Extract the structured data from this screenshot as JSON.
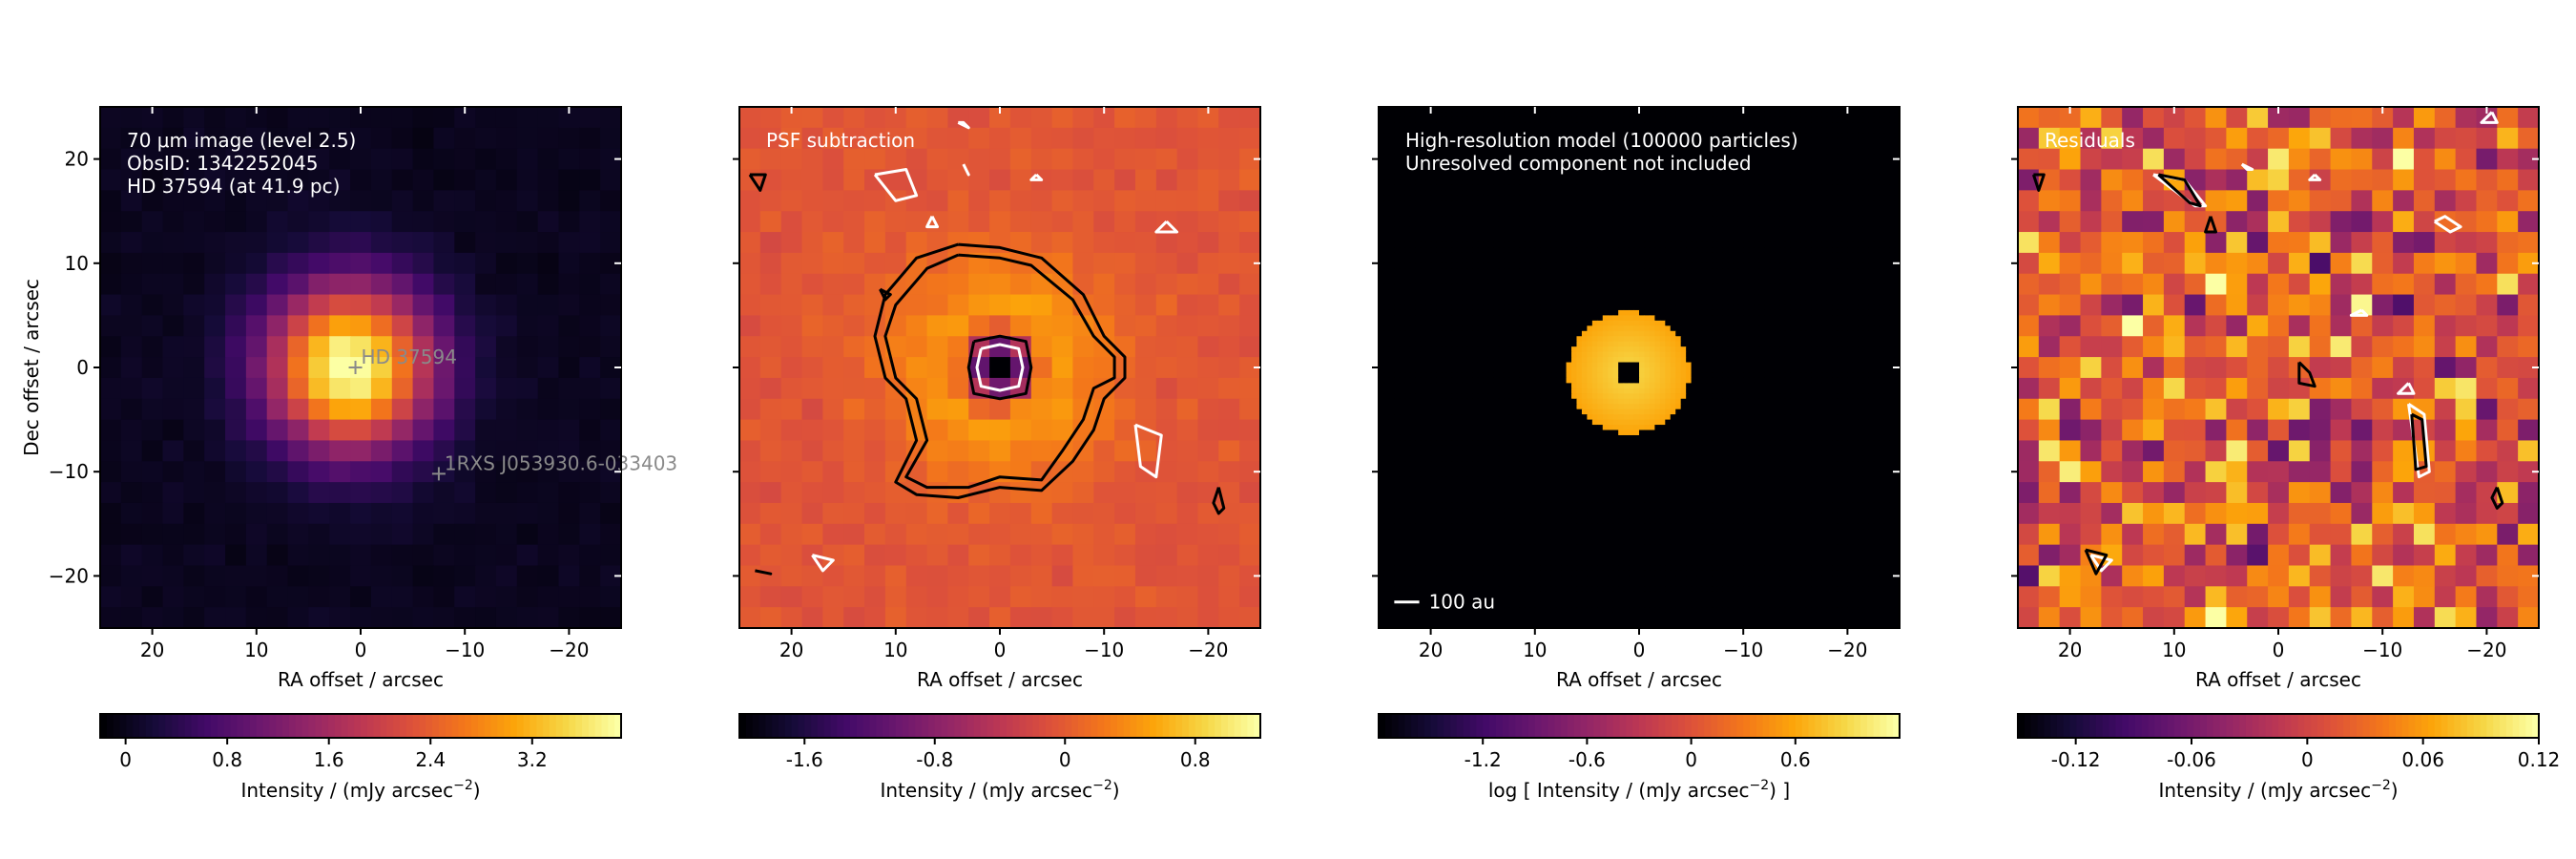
{
  "figure": {
    "background": "#ffffff",
    "colormap": "inferno"
  },
  "chart_data": [
    {
      "type": "heatmap",
      "annotation_lines": [
        "70 μm image (level 2.5)",
        "ObsID: 1342252045",
        "HD 37594 (at 41.9 pc)"
      ],
      "xlabel": "RA offset / arcsec",
      "ylabel": "Dec offset / arcsec",
      "xlim": [
        25,
        -25
      ],
      "ylim": [
        -25,
        25
      ],
      "x_ticks": [
        20,
        10,
        0,
        -10,
        -20
      ],
      "x_tick_labels": [
        "20",
        "10",
        "0",
        "−10",
        "−20"
      ],
      "y_ticks": [
        20,
        10,
        0,
        -10,
        -20
      ],
      "y_tick_labels": [
        "20",
        "10",
        "0",
        "−10",
        "−20"
      ],
      "pixel_arcsec": 2,
      "image_model": {
        "kind": "gaussian_source",
        "center": [
          1,
          0
        ],
        "fwhm_arcsec": 13,
        "peak": 4.0,
        "noise": 0.05
      },
      "markers": [
        {
          "label": "HD 37594",
          "x": 0.5,
          "y": 0
        },
        {
          "label": "1RXS J053930.6-033403",
          "x": -7.5,
          "y": -10.2
        }
      ],
      "colorbar": {
        "label": "Intensity / (mJy arcsec",
        "label_sup": "−2",
        "label_end": ")",
        "range": [
          -0.2,
          3.9
        ],
        "ticks": [
          0,
          0.8,
          1.6,
          2.4,
          3.2
        ],
        "tick_labels": [
          "0",
          "0.8",
          "1.6",
          "2.4",
          "3.2"
        ]
      }
    },
    {
      "type": "heatmap",
      "annotation_lines": [
        "PSF subtraction"
      ],
      "xlabel": "RA offset / arcsec",
      "ylabel": "",
      "xlim": [
        25,
        -25
      ],
      "ylim": [
        -25,
        25
      ],
      "x_ticks": [
        20,
        10,
        0,
        -10,
        -20
      ],
      "x_tick_labels": [
        "20",
        "10",
        "0",
        "−10",
        "−20"
      ],
      "y_ticks": [
        20,
        10,
        0,
        -10,
        -20
      ],
      "pixel_arcsec": 2,
      "image_model": {
        "kind": "ring_residual",
        "outer_amplitude": 0.8,
        "outer_sigma": 7,
        "hole_depth": 2.7,
        "hole_sigma": 2.2,
        "noise": 0.08,
        "offset": -0.05
      },
      "contours": [
        {
          "color": "#000000",
          "x": [
            4,
            8,
            11,
            12,
            11,
            9,
            8,
            10,
            8,
            4,
            0,
            -4,
            -7,
            -9,
            -10,
            -12,
            -12,
            -10,
            -8,
            -4,
            0,
            4
          ],
          "y": [
            11.8,
            10.5,
            7,
            3,
            -1,
            -3,
            -7,
            -11,
            -12.2,
            -12.5,
            -11.5,
            -11.8,
            -9,
            -6,
            -3,
            -1,
            1,
            3,
            7,
            10.5,
            11.5,
            11.8
          ]
        },
        {
          "color": "#000000",
          "x": [
            4,
            7,
            10,
            11,
            10,
            8,
            7,
            9,
            7,
            3,
            0,
            -4,
            -6,
            -8,
            -9,
            -11,
            -11,
            -9,
            -7,
            -3,
            0,
            4
          ],
          "y": [
            10.8,
            9.5,
            6,
            3,
            -1,
            -3,
            -7,
            -10.5,
            -11.5,
            -11.5,
            -10.5,
            -10.8,
            -8,
            -5,
            -2,
            -1,
            1,
            3,
            6.5,
            9.8,
            10.5,
            10.8
          ]
        },
        {
          "color": "#000000",
          "x": [
            2.5,
            0,
            -2.5,
            -3,
            -2.5,
            0,
            2.5,
            3,
            2.5
          ],
          "y": [
            2.5,
            3,
            2.5,
            0,
            -2.5,
            -3,
            -2.5,
            0,
            2.5
          ]
        },
        {
          "color": "#ffffff",
          "x": [
            1.8,
            0,
            -1.8,
            -2.2,
            -1.8,
            0,
            1.8,
            2.2,
            1.8
          ],
          "y": [
            1.8,
            2.2,
            1.8,
            0,
            -1.8,
            -2.2,
            -1.8,
            0,
            1.8
          ]
        },
        {
          "color": "#000000",
          "x": [
            24,
            23,
            22.5,
            24
          ],
          "y": [
            18.5,
            17,
            18.5,
            18.5
          ]
        },
        {
          "color": "#000000",
          "x": [
            11.5,
            11,
            10.5,
            11.5
          ],
          "y": [
            7.5,
            6.5,
            7,
            7.5
          ]
        },
        {
          "color": "#000000",
          "x": [
            -21,
            -21.5,
            -21,
            -20.5,
            -21
          ],
          "y": [
            -11.5,
            -13.5,
            -14,
            -13,
            -11.5
          ]
        },
        {
          "color": "#ffffff",
          "x": [
            12,
            9,
            8,
            10,
            12
          ],
          "y": [
            18.5,
            19,
            16.5,
            16,
            18.5
          ]
        },
        {
          "color": "#ffffff",
          "x": [
            -16,
            -17,
            -15,
            -16
          ],
          "y": [
            14,
            13,
            13,
            14
          ]
        },
        {
          "color": "#ffffff",
          "x": [
            -13,
            -15.5,
            -15,
            -13.5,
            -13
          ],
          "y": [
            -5.5,
            -6.5,
            -10.5,
            -9.5,
            -5.5
          ]
        },
        {
          "color": "#ffffff",
          "x": [
            18,
            16,
            17,
            18
          ],
          "y": [
            -18,
            -18.5,
            -19.5,
            -18
          ]
        },
        {
          "color": "#ffffff",
          "x": [
            4,
            3.5,
            3,
            4
          ],
          "y": [
            23.5,
            23.5,
            23,
            23.5
          ]
        },
        {
          "color": "#ffffff",
          "x": [
            3.5,
            3,
            3.5
          ],
          "y": [
            19.5,
            18.5,
            19.5
          ]
        },
        {
          "color": "#ffffff",
          "x": [
            -3.5,
            -3,
            -4,
            -3.5
          ],
          "y": [
            18.5,
            18,
            18,
            18.5
          ]
        },
        {
          "color": "#ffffff",
          "x": [
            6.5,
            6,
            7,
            6.5
          ],
          "y": [
            14.5,
            13.5,
            13.5,
            14.5
          ]
        },
        {
          "color": "#000000",
          "x": [
            23.5,
            22,
            23.5
          ],
          "y": [
            -19.5,
            -19.8,
            -19.5
          ]
        }
      ],
      "colorbar": {
        "label": "Intensity / (mJy arcsec",
        "label_sup": "−2",
        "label_end": ")",
        "range": [
          -2.0,
          1.2
        ],
        "ticks": [
          -1.6,
          -0.8,
          0,
          0.8
        ],
        "tick_labels": [
          "-1.6",
          "-0.8",
          "0",
          "0.8"
        ]
      }
    },
    {
      "type": "heatmap",
      "annotation_lines": [
        "High-resolution model (100000 particles)",
        "Unresolved component not included"
      ],
      "xlabel": "RA offset / arcsec",
      "ylabel": "",
      "xlim": [
        25,
        -25
      ],
      "ylim": [
        -25,
        25
      ],
      "x_ticks": [
        20,
        10,
        0,
        -10,
        -20
      ],
      "x_tick_labels": [
        "20",
        "10",
        "0",
        "−10",
        "−20"
      ],
      "y_ticks": [
        20,
        10,
        0,
        -10,
        -20
      ],
      "pixel_arcsec": 0.5,
      "image_model": {
        "kind": "disk_model",
        "inner_radius": 1.2,
        "outer_radius": 5.8,
        "peak": 1.0,
        "background": -2.0
      },
      "scale_bar": {
        "label": "100 au",
        "length_arcsec": 2.4
      },
      "colorbar": {
        "label": "log [ Intensity / (mJy arcsec",
        "label_sup": "−2",
        "label_end": ") ]",
        "range": [
          -1.8,
          1.2
        ],
        "ticks": [
          -1.2,
          -0.6,
          0,
          0.6
        ],
        "tick_labels": [
          "-1.2",
          "-0.6",
          "0",
          "0.6"
        ]
      }
    },
    {
      "type": "heatmap",
      "annotation_lines": [
        "Residuals"
      ],
      "xlabel": "RA offset / arcsec",
      "ylabel": "",
      "xlim": [
        25,
        -25
      ],
      "ylim": [
        -25,
        25
      ],
      "x_ticks": [
        20,
        10,
        0,
        -10,
        -20
      ],
      "x_tick_labels": [
        "20",
        "10",
        "0",
        "−10",
        "−20"
      ],
      "y_ticks": [
        20,
        10,
        0,
        -10,
        -20
      ],
      "pixel_arcsec": 2,
      "image_model": {
        "kind": "noise",
        "amplitude": 0.06,
        "offset": 0.02
      },
      "contours": [
        {
          "color": "#ffffff",
          "x": [
            12,
            9,
            7,
            8,
            12
          ],
          "y": [
            18.5,
            18,
            15.5,
            15.5,
            18.5
          ]
        },
        {
          "color": "#000000",
          "x": [
            11.5,
            9,
            7.5,
            8.5,
            11.5
          ],
          "y": [
            18.5,
            18,
            15.5,
            15.8,
            18.5
          ]
        },
        {
          "color": "#000000",
          "x": [
            6.5,
            6,
            7,
            6.5
          ],
          "y": [
            14.5,
            13,
            13,
            14.5
          ]
        },
        {
          "color": "#ffffff",
          "x": [
            -15,
            -16.5,
            -17.5,
            -16,
            -15
          ],
          "y": [
            14,
            13,
            13.5,
            14.5,
            14
          ]
        },
        {
          "color": "#ffffff",
          "x": [
            -12.5,
            -14,
            -14.5,
            -13.5,
            -12.5
          ],
          "y": [
            -3.5,
            -4.5,
            -10,
            -10.5,
            -3.5
          ]
        },
        {
          "color": "#000000",
          "x": [
            -12.8,
            -13.8,
            -14.2,
            -13.2,
            -12.8
          ],
          "y": [
            -4.5,
            -5,
            -9.5,
            -9.8,
            -4.5
          ]
        },
        {
          "color": "#000000",
          "x": [
            -2,
            -3,
            -3.5,
            -2,
            -2
          ],
          "y": [
            0.5,
            -0.5,
            -1.8,
            -1.5,
            0.5
          ]
        },
        {
          "color": "#000000",
          "x": [
            -21,
            -21.5,
            -21,
            -20.5,
            -21
          ],
          "y": [
            -11.5,
            -13,
            -13.5,
            -12.5,
            -11.5
          ]
        },
        {
          "color": "#000000",
          "x": [
            23.5,
            22.5,
            23,
            23.5
          ],
          "y": [
            18.5,
            18.5,
            17,
            18.5
          ]
        },
        {
          "color": "#ffffff",
          "x": [
            18,
            16,
            17,
            18
          ],
          "y": [
            -18,
            -18.5,
            -19.5,
            -18
          ]
        },
        {
          "color": "#000000",
          "x": [
            18.5,
            16.5,
            17.5,
            18.5
          ],
          "y": [
            -17.5,
            -18,
            -19.8,
            -17.5
          ]
        },
        {
          "color": "#ffffff",
          "x": [
            3.5,
            2.5,
            3,
            3.5
          ],
          "y": [
            19.5,
            19,
            19,
            19.5
          ]
        },
        {
          "color": "#ffffff",
          "x": [
            -3.5,
            -3,
            -4,
            -3.5
          ],
          "y": [
            18.5,
            18,
            18,
            18.5
          ]
        },
        {
          "color": "#ffffff",
          "x": [
            -8,
            -7,
            -8.5,
            -8
          ],
          "y": [
            5.5,
            5,
            5,
            5.5
          ]
        },
        {
          "color": "#ffffff",
          "x": [
            -12.5,
            -11.5,
            -13,
            -12.5
          ],
          "y": [
            -1.5,
            -2.5,
            -2.5,
            -1.5
          ]
        },
        {
          "color": "#ffffff",
          "x": [
            -20.5,
            -19.5,
            -21,
            -20.5
          ],
          "y": [
            24.5,
            23.5,
            23.5,
            24.5
          ]
        }
      ],
      "colorbar": {
        "label": "Intensity / (mJy arcsec",
        "label_sup": "−2",
        "label_end": ")",
        "range": [
          -0.15,
          0.12
        ],
        "ticks": [
          -0.12,
          -0.06,
          0,
          0.06,
          0.12
        ],
        "tick_labels": [
          "-0.12",
          "-0.06",
          "0",
          "0.06",
          "0.12"
        ]
      }
    }
  ]
}
